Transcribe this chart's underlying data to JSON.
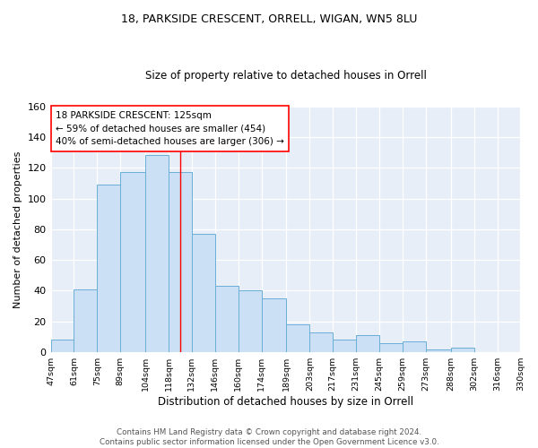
{
  "title1": "18, PARKSIDE CRESCENT, ORRELL, WIGAN, WN5 8LU",
  "title2": "Size of property relative to detached houses in Orrell",
  "xlabel": "Distribution of detached houses by size in Orrell",
  "ylabel": "Number of detached properties",
  "bin_edges": [
    47,
    61,
    75,
    89,
    104,
    118,
    132,
    146,
    160,
    174,
    189,
    203,
    217,
    231,
    245,
    259,
    273,
    288,
    302,
    316,
    330
  ],
  "bar_heights": [
    8,
    41,
    109,
    117,
    128,
    117,
    77,
    43,
    40,
    35,
    18,
    13,
    8,
    11,
    6,
    7,
    2,
    3,
    0,
    0
  ],
  "tick_labels": [
    "47sqm",
    "61sqm",
    "75sqm",
    "89sqm",
    "104sqm",
    "118sqm",
    "132sqm",
    "146sqm",
    "160sqm",
    "174sqm",
    "189sqm",
    "203sqm",
    "217sqm",
    "231sqm",
    "245sqm",
    "259sqm",
    "273sqm",
    "288sqm",
    "302sqm",
    "316sqm",
    "330sqm"
  ],
  "bar_color": "#cce0f5",
  "bar_edge_color": "#6aaed6",
  "vline_x": 125,
  "vline_color": "red",
  "ylim": [
    0,
    160
  ],
  "yticks": [
    0,
    20,
    40,
    60,
    80,
    100,
    120,
    140,
    160
  ],
  "annotation_text": "18 PARKSIDE CRESCENT: 125sqm\n← 59% of detached houses are smaller (454)\n40% of semi-detached houses are larger (306) →",
  "footer": "Contains HM Land Registry data © Crown copyright and database right 2024.\nContains public sector information licensed under the Open Government Licence v3.0.",
  "bg_color": "#e8eef8",
  "fig_bg_color": "#ffffff"
}
